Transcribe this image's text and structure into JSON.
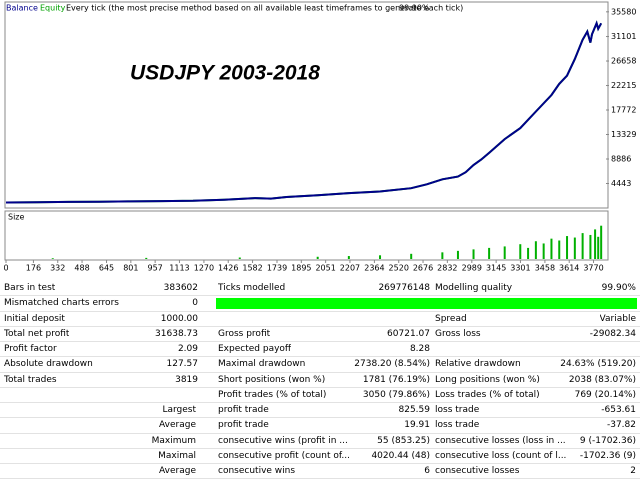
{
  "chart_data": [
    {
      "type": "line",
      "title": "USDJPY 2003-2018",
      "header": {
        "mode": "Every tick (the most precise method based on all available least timeframes to generate each tick)",
        "quality": "99.90%"
      },
      "x": [
        0,
        200,
        400,
        600,
        800,
        1000,
        1200,
        1400,
        1600,
        1700,
        1800,
        2000,
        2200,
        2400,
        2600,
        2700,
        2800,
        2900,
        2950,
        3000,
        3050,
        3100,
        3200,
        3300,
        3400,
        3500,
        3550,
        3600,
        3650,
        3700,
        3730,
        3750,
        3760,
        3790,
        3800,
        3819
      ],
      "series": [
        {
          "name": "Equity",
          "color": "#00a000",
          "values": [
            1000,
            1050,
            1100,
            1150,
            1200,
            1250,
            1300,
            1500,
            1800,
            1700,
            2000,
            2300,
            2700,
            3000,
            3600,
            4300,
            5200,
            5700,
            6500,
            7800,
            8800,
            10000,
            12500,
            14500,
            17500,
            20500,
            22500,
            24000,
            27000,
            30500,
            32000,
            30000,
            31500,
            33500,
            32500,
            33500
          ]
        },
        {
          "name": "Balance",
          "color": "#00008b",
          "values": [
            1000,
            1050,
            1100,
            1150,
            1200,
            1250,
            1300,
            1500,
            1800,
            1700,
            2000,
            2300,
            2700,
            3000,
            3600,
            4300,
            5200,
            5700,
            6500,
            7800,
            8800,
            10000,
            12500,
            14500,
            17500,
            20500,
            22500,
            24000,
            27000,
            30500,
            32000,
            30000,
            31500,
            33500,
            32500,
            33500
          ]
        }
      ],
      "xlim": [
        0,
        3850
      ],
      "xticks": [
        0,
        176,
        332,
        488,
        645,
        801,
        957,
        1113,
        1270,
        1426,
        1582,
        1739,
        1895,
        2051,
        2207,
        2364,
        2520,
        2676,
        2832,
        2989,
        3145,
        3301,
        3458,
        3614,
        3770
      ],
      "ylim": [
        0,
        37000
      ],
      "yticks": [
        4443,
        8886,
        13329,
        17772,
        22215,
        26658,
        31101,
        35580
      ]
    },
    {
      "type": "bar",
      "title": "Size",
      "color": "#00b000",
      "x": [
        300,
        900,
        1500,
        2000,
        2200,
        2400,
        2600,
        2800,
        2900,
        3000,
        3100,
        3200,
        3300,
        3350,
        3400,
        3450,
        3500,
        3550,
        3600,
        3650,
        3700,
        3750,
        3780,
        3800,
        3819
      ],
      "values": [
        0.02,
        0.03,
        0.04,
        0.06,
        0.08,
        0.1,
        0.14,
        0.18,
        0.22,
        0.26,
        0.3,
        0.34,
        0.4,
        0.3,
        0.48,
        0.42,
        0.55,
        0.5,
        0.62,
        0.58,
        0.7,
        0.65,
        0.8,
        0.6,
        0.9
      ],
      "xlim": [
        0,
        3850
      ],
      "ylim": [
        0,
        1
      ]
    }
  ],
  "report": {
    "rows": [
      [
        "Bars in test",
        "383602",
        "Ticks modelled",
        "269776148",
        "Modelling quality",
        "99.90%"
      ],
      [
        "Mismatched charts errors",
        "0",
        null,
        null,
        null,
        null
      ],
      [
        "Initial deposit",
        "1000.00",
        null,
        null,
        "Spread",
        "Variable"
      ],
      [
        "Total net profit",
        "31638.73",
        "Gross profit",
        "60721.07",
        "Gross loss",
        "-29082.34"
      ],
      [
        "Profit factor",
        "2.09",
        "Expected payoff",
        "8.28",
        null,
        null
      ],
      [
        "Absolute drawdown",
        "127.57",
        "Maximal drawdown",
        "2738.20 (8.54%)",
        "Relative drawdown",
        "24.63% (519.20)"
      ],
      [
        "Total trades",
        "3819",
        "Short positions (won %)",
        "1781 (76.19%)",
        "Long positions (won %)",
        "2038 (83.07%)"
      ],
      [
        null,
        null,
        "Profit trades (% of total)",
        "3050 (79.86%)",
        "Loss trades (% of total)",
        "769 (20.14%)"
      ],
      [
        "Largest",
        null,
        "profit trade",
        "825.59",
        "loss trade",
        "-653.61"
      ],
      [
        "Average",
        null,
        "profit trade",
        "19.91",
        "loss trade",
        "-37.82"
      ],
      [
        "Maximum",
        null,
        "consecutive wins (profit in ...",
        "55 (853.25)",
        "consecutive losses (loss in ...",
        "9 (-1702.36)"
      ],
      [
        "Maximal",
        null,
        "consecutive profit (count of...",
        "4020.44 (48)",
        "consecutive loss (count of l...",
        "-1702.36 (9)"
      ],
      [
        "Average",
        null,
        "consecutive wins",
        "6",
        "consecutive losses",
        "2"
      ]
    ]
  }
}
